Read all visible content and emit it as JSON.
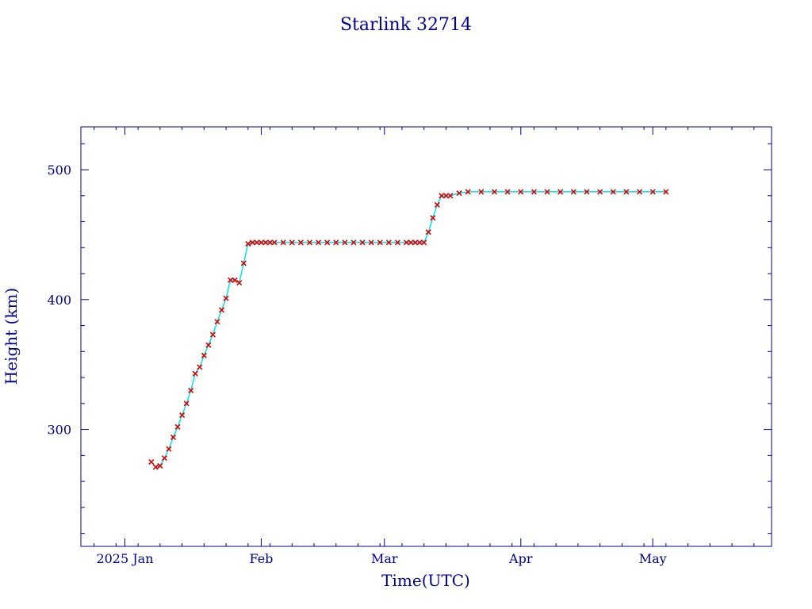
{
  "chart_data": {
    "type": "scatter",
    "title": "Starlink 32714",
    "xlabel": "Time(UTC)",
    "ylabel": "Height (km)",
    "x_range": [
      "2024-12-22",
      "2025-05-28"
    ],
    "ylim": [
      210,
      533
    ],
    "grid": false,
    "x_ticks": [
      {
        "date": "2025-01-01",
        "label": "2025 Jan"
      },
      {
        "date": "2025-02-01",
        "label": "Feb"
      },
      {
        "date": "2025-03-01",
        "label": "Mar"
      },
      {
        "date": "2025-04-01",
        "label": "Apr"
      },
      {
        "date": "2025-05-01",
        "label": "May"
      }
    ],
    "y_ticks": [
      300,
      400,
      500
    ],
    "colors": {
      "axis": "#00008b",
      "points": "#dd0000",
      "track": "#00e5ee"
    },
    "series": [
      {
        "marker": "x",
        "x": [
          "2025-01-07",
          "2025-01-08",
          "2025-01-09",
          "2025-01-10",
          "2025-01-11",
          "2025-01-12",
          "2025-01-13",
          "2025-01-14",
          "2025-01-15",
          "2025-01-16",
          "2025-01-17",
          "2025-01-18",
          "2025-01-19",
          "2025-01-20",
          "2025-01-21",
          "2025-01-22",
          "2025-01-23",
          "2025-01-24",
          "2025-01-25",
          "2025-01-26",
          "2025-01-27",
          "2025-01-28",
          "2025-01-29",
          "2025-01-30",
          "2025-01-31",
          "2025-02-01",
          "2025-02-02",
          "2025-02-03",
          "2025-02-04",
          "2025-02-06",
          "2025-02-08",
          "2025-02-10",
          "2025-02-12",
          "2025-02-14",
          "2025-02-16",
          "2025-02-18",
          "2025-02-20",
          "2025-02-22",
          "2025-02-24",
          "2025-02-26",
          "2025-02-28",
          "2025-03-02",
          "2025-03-04",
          "2025-03-06",
          "2025-03-07",
          "2025-03-08",
          "2025-03-09",
          "2025-03-10",
          "2025-03-11",
          "2025-03-12",
          "2025-03-13",
          "2025-03-14",
          "2025-03-15",
          "2025-03-16",
          "2025-03-18",
          "2025-03-20",
          "2025-03-23",
          "2025-03-26",
          "2025-03-29",
          "2025-04-01",
          "2025-04-04",
          "2025-04-07",
          "2025-04-10",
          "2025-04-13",
          "2025-04-16",
          "2025-04-19",
          "2025-04-22",
          "2025-04-25",
          "2025-04-28",
          "2025-05-01",
          "2025-05-04"
        ],
        "y": [
          275,
          271,
          272,
          278,
          285,
          294,
          302,
          311,
          320,
          330,
          343,
          348,
          357,
          365,
          373,
          383,
          392,
          401,
          415,
          415,
          413,
          428,
          443,
          444,
          444,
          444,
          444,
          444,
          444,
          444,
          444,
          444,
          444,
          444,
          444,
          444,
          444,
          444,
          444,
          444,
          444,
          444,
          444,
          444,
          444,
          444,
          444,
          444,
          452,
          463,
          473,
          480,
          480,
          480,
          482,
          483,
          483,
          483,
          483,
          483,
          483,
          483,
          483,
          483,
          483,
          483,
          483,
          483,
          483,
          483,
          483
        ]
      }
    ]
  }
}
